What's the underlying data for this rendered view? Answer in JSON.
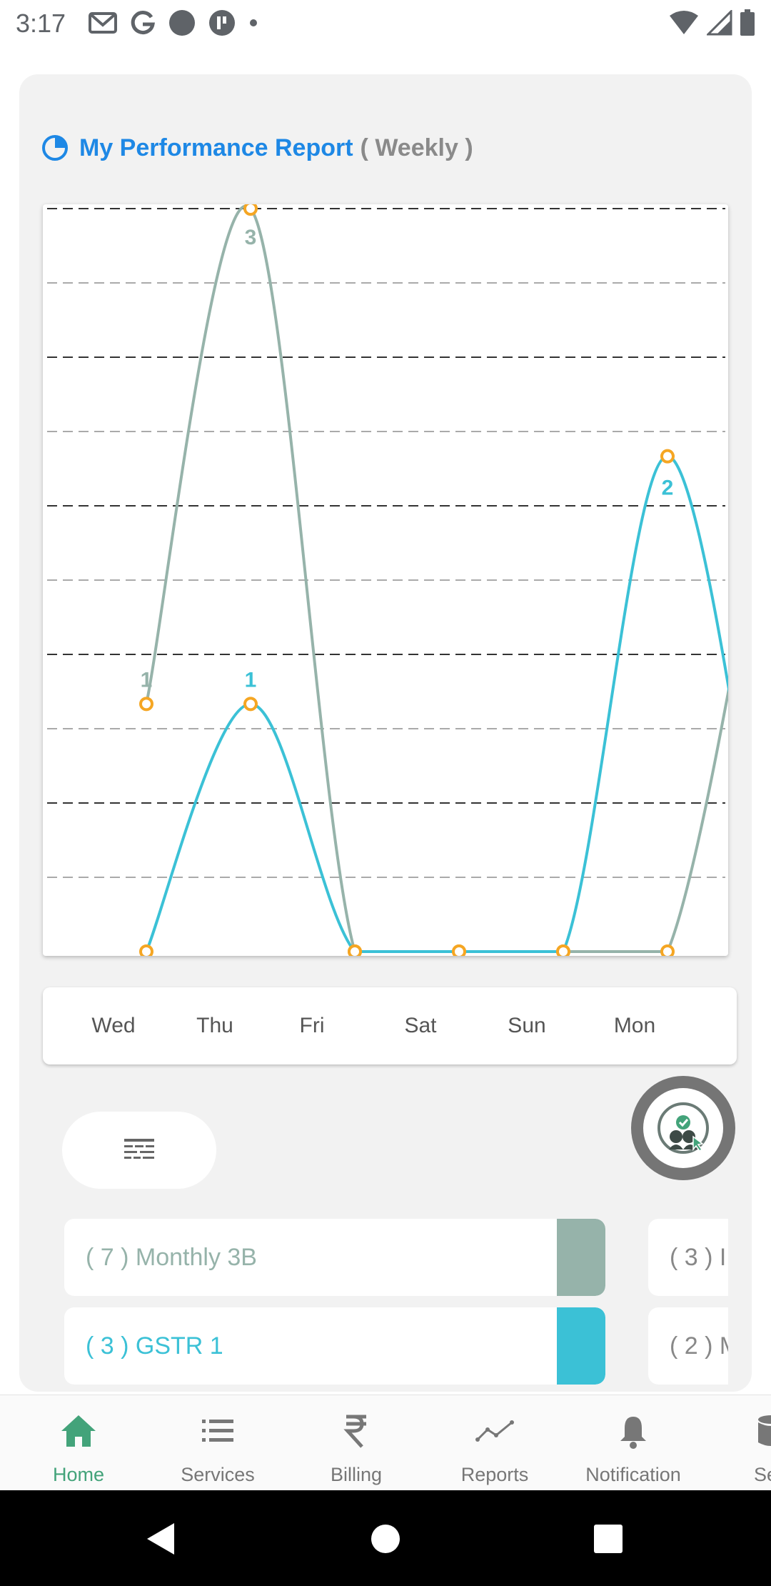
{
  "status_bar": {
    "time": "3:17",
    "left_icons": [
      "gmail-icon",
      "google-icon",
      "circle-app-icon",
      "tp-app-icon",
      "dot-icon"
    ],
    "right_icons": [
      "wifi-icon",
      "signal-icon",
      "battery-icon"
    ]
  },
  "report": {
    "title": "My Performance Report",
    "period": "( Weekly )"
  },
  "chart_data": {
    "type": "line",
    "categories": [
      "Wed",
      "Thu",
      "Fri",
      "Sat",
      "Sun",
      "Mon"
    ],
    "series": [
      {
        "name": "Monthly 3B",
        "color": "#96b3aa",
        "values": [
          1,
          3,
          0,
          0,
          0,
          0
        ]
      },
      {
        "name": "GSTR 1",
        "color": "#3bc1d6",
        "values": [
          0,
          1,
          0,
          0,
          0,
          2
        ]
      }
    ],
    "data_labels": [
      {
        "series": "Monthly 3B",
        "category": "Wed",
        "text": "1"
      },
      {
        "series": "Monthly 3B",
        "category": "Thu",
        "text": "3"
      },
      {
        "series": "GSTR 1",
        "category": "Thu",
        "text": "1"
      },
      {
        "series": "GSTR 1",
        "category": "Mon",
        "text": "2"
      }
    ],
    "point_color": "#f5a623",
    "ylim": [
      0,
      3
    ],
    "grid": true
  },
  "legend": {
    "items": [
      {
        "label": "( 7 ) Monthly 3B",
        "color": "#96b3aa"
      },
      {
        "label": "( 3 ) GSTR 1",
        "color": "#3bc1d6"
      }
    ],
    "clipped_items": [
      "( 3 ) I",
      "( 2 ) M"
    ]
  },
  "bottom_nav": {
    "items": [
      {
        "label": "Home",
        "icon": "home-icon",
        "active": true
      },
      {
        "label": "Services",
        "icon": "list-icon",
        "active": false
      },
      {
        "label": "Billing",
        "icon": "rupee-icon",
        "active": false
      },
      {
        "label": "Reports",
        "icon": "trend-icon",
        "active": false
      },
      {
        "label": "Notification",
        "icon": "bell-icon",
        "active": false
      },
      {
        "label": "Sea",
        "icon": "database-icon",
        "active": false
      }
    ],
    "active_color": "#43a37a"
  },
  "system_nav": [
    "back-icon",
    "home-circle-icon",
    "recents-icon"
  ]
}
